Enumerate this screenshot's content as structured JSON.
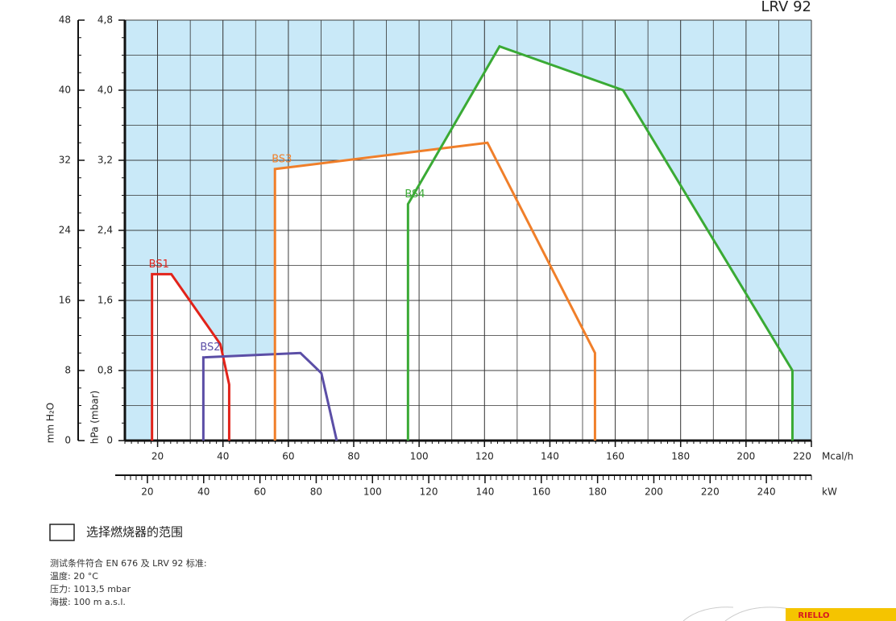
{
  "chart_data": {
    "type": "line",
    "title": "LRV 92",
    "y_label": "hPa (mbar)",
    "y2_label": "mm H₂O",
    "x_label": "Mcal/h",
    "x2_label": "kW",
    "xlim": [
      10,
      220
    ],
    "xticks": [
      20,
      40,
      60,
      80,
      100,
      120,
      140,
      160,
      180,
      200,
      220
    ],
    "x2lim": [
      12,
      256
    ],
    "x2ticks": [
      20,
      40,
      60,
      80,
      100,
      120,
      140,
      160,
      180,
      200,
      220,
      240
    ],
    "ylim": [
      0,
      4.8
    ],
    "yticks": [
      0,
      {
        "value": 0.8,
        "label": "0,8"
      },
      {
        "value": 1.6,
        "label": "1,6"
      },
      {
        "value": 2.4,
        "label": "2,4"
      },
      {
        "value": 3.2,
        "label": "3,2"
      },
      {
        "value": 4.0,
        "label": "4,0"
      },
      {
        "value": 4.8,
        "label": "4,8"
      }
    ],
    "y2lim": [
      0,
      48
    ],
    "y2ticks": [
      0,
      8,
      16,
      24,
      32,
      40,
      48
    ],
    "grid": true,
    "background": "#c9e9f8",
    "series": [
      {
        "name": "BS1",
        "color": "#e2231a",
        "x": [
          18.3,
          18.3,
          24.2,
          39.2,
          41.9,
          41.9
        ],
        "values": [
          0,
          1.9,
          1.9,
          1.1,
          0.64,
          0
        ]
      },
      {
        "name": "BS2",
        "color": "#5b4ea6",
        "x": [
          34.0,
          34.0,
          63.7,
          70.1,
          74.8
        ],
        "values": [
          0,
          0.95,
          1.0,
          0.77,
          0
        ]
      },
      {
        "name": "BS3",
        "color": "#f07f2a",
        "x": [
          55.9,
          55.9,
          120.9,
          153.8,
          153.8
        ],
        "values": [
          0,
          3.1,
          3.4,
          1.0,
          0
        ]
      },
      {
        "name": "BS4",
        "color": "#3aaa35",
        "x": [
          96.6,
          96.6,
          124.6,
          162.4,
          214.2,
          214.2
        ],
        "values": [
          0,
          2.7,
          4.5,
          4.0,
          0.8,
          0
        ]
      }
    ]
  },
  "range_label": "选择燃烧器的范围",
  "notes": [
    "测试条件符合 EN 676 及 LRV 92 标准:",
    "温度: 20 °C",
    "压力: 1013,5 mbar",
    "海拔: 100 m a.s.l."
  ],
  "brand": "RIELLO"
}
